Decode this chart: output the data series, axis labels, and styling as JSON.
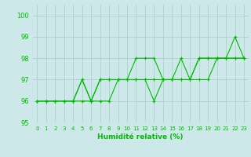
{
  "title": "",
  "xlabel": "Humidité relative (%)",
  "ylabel": "",
  "bg_color": "#cce8e8",
  "grid_color": "#aacccc",
  "line_color": "#00bb00",
  "marker_color": "#00bb00",
  "xlim": [
    -0.5,
    23.5
  ],
  "ylim": [
    95,
    100.5
  ],
  "yticks": [
    95,
    96,
    97,
    98,
    99,
    100
  ],
  "xticks": [
    0,
    1,
    2,
    3,
    4,
    5,
    6,
    7,
    8,
    9,
    10,
    11,
    12,
    13,
    14,
    15,
    16,
    17,
    18,
    19,
    20,
    21,
    22,
    23
  ],
  "series": [
    [
      96,
      96,
      96,
      96,
      96,
      97,
      96,
      97,
      97,
      97,
      97,
      98,
      98,
      98,
      97,
      97,
      98,
      97,
      98,
      98,
      98,
      98,
      99,
      98
    ],
    [
      96,
      96,
      96,
      96,
      96,
      96,
      96,
      96,
      96,
      97,
      97,
      97,
      97,
      96,
      97,
      97,
      97,
      97,
      97,
      97,
      98,
      98,
      98,
      98
    ],
    [
      96,
      96,
      96,
      96,
      96,
      97,
      96,
      97,
      97,
      97,
      97,
      97,
      97,
      97,
      97,
      97,
      97,
      97,
      98,
      98,
      98,
      98,
      98,
      98
    ]
  ]
}
